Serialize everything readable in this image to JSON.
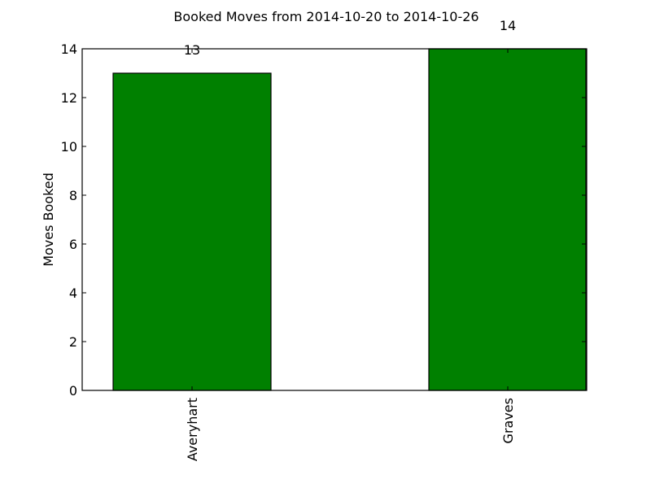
{
  "chart_data": {
    "type": "bar",
    "title": "Booked Moves from 2014-10-20 to 2014-10-26",
    "xlabel": "",
    "ylabel": "Moves Booked",
    "categories": [
      "Averyhart",
      "Graves"
    ],
    "values": [
      13,
      14
    ],
    "data_labels": [
      "13",
      "14"
    ],
    "ylim": [
      0,
      14
    ],
    "yticks": [
      0,
      2,
      4,
      6,
      8,
      10,
      12,
      14
    ],
    "ytick_labels": [
      "0",
      "2",
      "4",
      "6",
      "8",
      "10",
      "12",
      "14"
    ],
    "grid": false,
    "bar_color": "#008000",
    "edge_color": "#000000"
  }
}
